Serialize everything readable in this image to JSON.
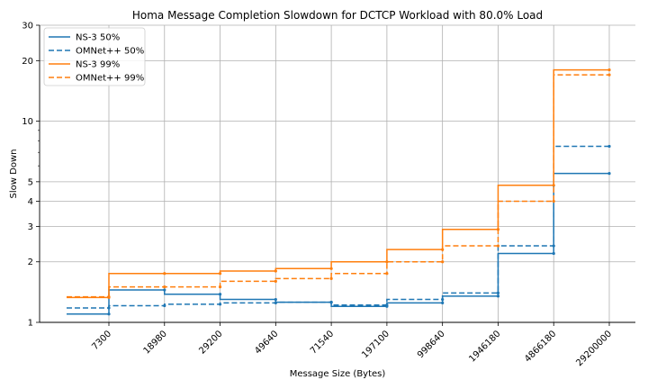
{
  "chart_data": {
    "type": "line",
    "title": "Homa Message Completion Slowdown for DCTCP Workload with 80.0% Load",
    "xlabel": "Message Size (Bytes)",
    "ylabel": "Slow Down",
    "x_scale": "categorical-rank",
    "x_ticks": [
      "7300",
      "18980",
      "29200",
      "49640",
      "71540",
      "197100",
      "998640",
      "1946180",
      "4866180",
      "29200000"
    ],
    "y_scale": "log",
    "ylim": [
      1,
      30
    ],
    "y_ticks": [
      "1",
      "2",
      "3",
      "4",
      "5",
      "10",
      "20",
      "30"
    ],
    "grid": true,
    "legend_position": "top-left",
    "series": [
      {
        "name": "NS-3 50%",
        "color": "#1f77b4",
        "dash": "solid",
        "x": [
          "7300",
          "18980",
          "29200",
          "49640",
          "71540",
          "197100",
          "998640",
          "1946180",
          "4866180",
          "29200000"
        ],
        "values": [
          1.1,
          1.45,
          1.38,
          1.3,
          1.26,
          1.2,
          1.25,
          1.35,
          2.2,
          5.5
        ]
      },
      {
        "name": "OMNet++ 50%",
        "color": "#1f77b4",
        "dash": "dashed",
        "x": [
          "7300",
          "18980",
          "29200",
          "49640",
          "71540",
          "197100",
          "998640",
          "1946180",
          "4866180",
          "29200000"
        ],
        "values": [
          1.18,
          1.21,
          1.23,
          1.25,
          1.26,
          1.22,
          1.3,
          1.4,
          2.4,
          7.5
        ]
      },
      {
        "name": "NS-3 99%",
        "color": "#ff7f0e",
        "dash": "solid",
        "x": [
          "7300",
          "18980",
          "29200",
          "49640",
          "71540",
          "197100",
          "998640",
          "1946180",
          "4866180",
          "29200000"
        ],
        "values": [
          1.33,
          1.75,
          1.75,
          1.8,
          1.85,
          2.0,
          2.3,
          2.9,
          4.8,
          18.0
        ]
      },
      {
        "name": "OMNet++ 99%",
        "color": "#ff7f0e",
        "dash": "dashed",
        "x": [
          "7300",
          "18980",
          "29200",
          "49640",
          "71540",
          "197100",
          "998640",
          "1946180",
          "4866180",
          "29200000"
        ],
        "values": [
          1.34,
          1.5,
          1.5,
          1.6,
          1.65,
          1.75,
          2.0,
          2.4,
          4.0,
          17.0
        ]
      }
    ]
  }
}
